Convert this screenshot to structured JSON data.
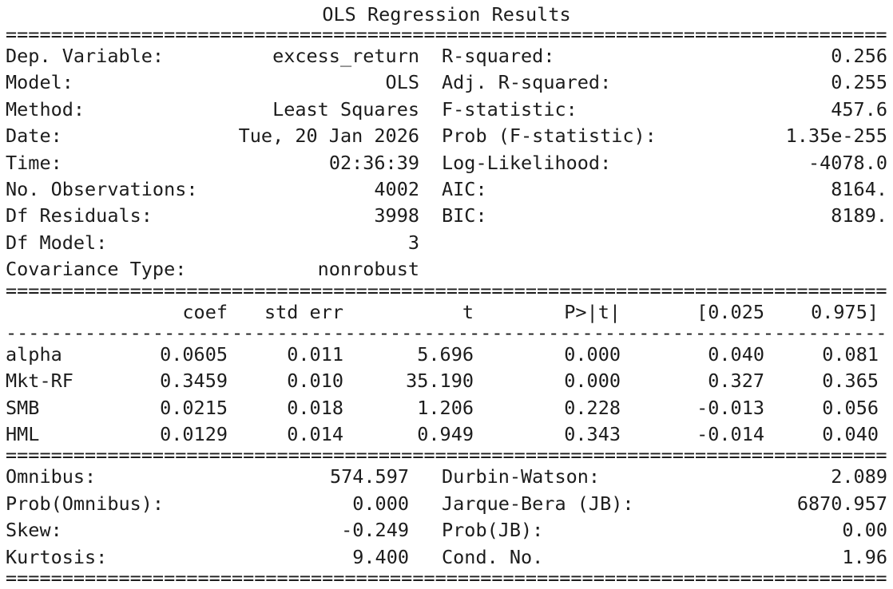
{
  "title": "OLS Regression Results",
  "separators": {
    "double": "==============================================================================",
    "single": "------------------------------------------------------------------------------"
  },
  "top_info": {
    "left": [
      {
        "label": "Dep. Variable:",
        "value": "excess_return"
      },
      {
        "label": "Model:",
        "value": "OLS"
      },
      {
        "label": "Method:",
        "value": "Least Squares"
      },
      {
        "label": "Date:",
        "value": "Tue, 20 Jan 2026"
      },
      {
        "label": "Time:",
        "value": "02:36:39"
      },
      {
        "label": "No. Observations:",
        "value": "4002"
      },
      {
        "label": "Df Residuals:",
        "value": "3998"
      },
      {
        "label": "Df Model:",
        "value": "3"
      },
      {
        "label": "Covariance Type:",
        "value": "nonrobust"
      }
    ],
    "right": [
      {
        "label": "R-squared:",
        "value": "0.256"
      },
      {
        "label": "Adj. R-squared:",
        "value": "0.255"
      },
      {
        "label": "F-statistic:",
        "value": "457.6"
      },
      {
        "label": "Prob (F-statistic):",
        "value": "1.35e-255"
      },
      {
        "label": "Log-Likelihood:",
        "value": "-4078.0"
      },
      {
        "label": "AIC:",
        "value": "8164."
      },
      {
        "label": "BIC:",
        "value": "8189."
      }
    ]
  },
  "coef_table": {
    "headers": {
      "name": "",
      "coef": "coef",
      "std_err": "std err",
      "t": "t",
      "p": "P>|t|",
      "ci_low": "[0.025",
      "ci_high": "0.975]"
    },
    "rows": [
      {
        "name": "alpha",
        "coef": "0.0605",
        "std_err": "0.011",
        "t": "5.696",
        "p": "0.000",
        "ci_low": "0.040",
        "ci_high": "0.081"
      },
      {
        "name": "Mkt-RF",
        "coef": "0.3459",
        "std_err": "0.010",
        "t": "35.190",
        "p": "0.000",
        "ci_low": "0.327",
        "ci_high": "0.365"
      },
      {
        "name": "SMB",
        "coef": "0.0215",
        "std_err": "0.018",
        "t": "1.206",
        "p": "0.228",
        "ci_low": "-0.013",
        "ci_high": "0.056"
      },
      {
        "name": "HML",
        "coef": "0.0129",
        "std_err": "0.014",
        "t": "0.949",
        "p": "0.343",
        "ci_low": "-0.014",
        "ci_high": "0.040"
      }
    ]
  },
  "diagnostics": {
    "left": [
      {
        "label": "Omnibus:",
        "value": "574.597"
      },
      {
        "label": "Prob(Omnibus):",
        "value": "0.000"
      },
      {
        "label": "Skew:",
        "value": "-0.249"
      },
      {
        "label": "Kurtosis:",
        "value": "9.400"
      }
    ],
    "right": [
      {
        "label": "Durbin-Watson:",
        "value": "2.089"
      },
      {
        "label": "Jarque-Bera (JB):",
        "value": "6870.957"
      },
      {
        "label": "Prob(JB):",
        "value": "0.00"
      },
      {
        "label": "Cond. No.",
        "value": "1.96"
      }
    ]
  },
  "colors": {
    "text": "#1c1c1c",
    "background": "#ffffff"
  }
}
